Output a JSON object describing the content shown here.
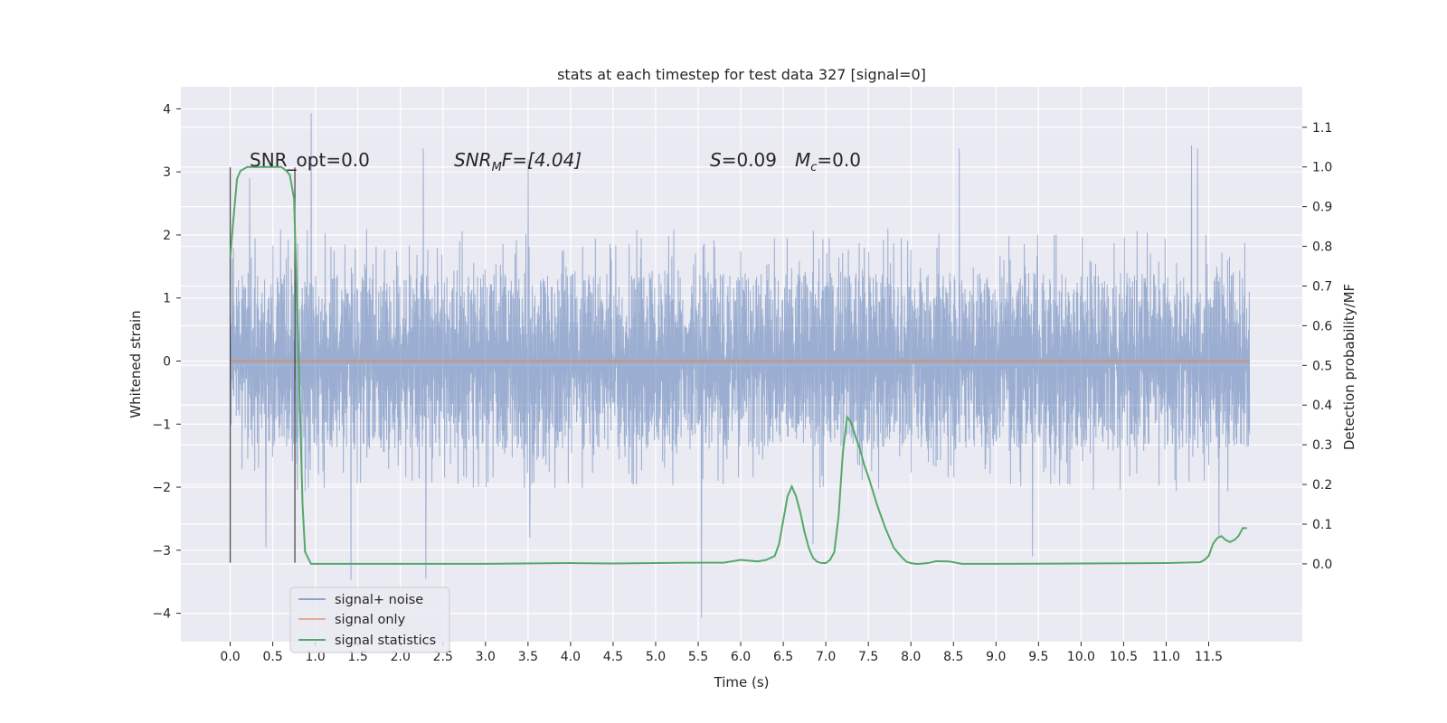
{
  "chart_data": {
    "type": "line",
    "title": "stats at each timestep for test data 327 [signal=0]",
    "xlabel": "Time (s)",
    "ylabel": "Whitened strain",
    "ylabel_right": "Detection probability/MF",
    "xlim": [
      -0.58,
      12.6
    ],
    "ylim": [
      -4.45,
      4.35
    ],
    "ylim_right": [
      -0.196,
      1.202
    ],
    "x_ticks": [
      0.0,
      0.5,
      1.0,
      1.5,
      2.0,
      2.5,
      3.0,
      3.5,
      4.0,
      4.5,
      5.0,
      5.5,
      6.0,
      6.5,
      7.0,
      7.5,
      8.0,
      8.5,
      9.0,
      9.5,
      10.0,
      10.5,
      11.0,
      11.5
    ],
    "x_tick_labels": [
      "0.0",
      "0.5",
      "1.0",
      "1.5",
      "2.0",
      "2.5",
      "3.0",
      "3.5",
      "4.0",
      "4.5",
      "5.0",
      "5.5",
      "6.0",
      "6.5",
      "7.0",
      "7.5",
      "8.0",
      "8.5",
      "9.0",
      "9.5",
      "10.0",
      "10.5",
      "11.0",
      "11.5"
    ],
    "y_ticks": [
      -4,
      -3,
      -2,
      -1,
      0,
      1,
      2,
      3,
      4
    ],
    "y_tick_labels": [
      "−4",
      "−3",
      "−2",
      "−1",
      "0",
      "1",
      "2",
      "3",
      "4"
    ],
    "y_ticks_right": [
      0.0,
      0.1,
      0.2,
      0.3,
      0.4,
      0.5,
      0.6,
      0.7,
      0.8,
      0.9,
      1.0,
      1.1
    ],
    "y_tick_labels_right": [
      "0.0",
      "0.1",
      "0.2",
      "0.3",
      "0.4",
      "0.5",
      "0.6",
      "0.7",
      "0.8",
      "0.9",
      "1.0",
      "1.1"
    ],
    "grid": true,
    "legend_position": "lower-left",
    "legend": [
      {
        "label": "signal+ noise",
        "color": "#4C72B0"
      },
      {
        "label": "signal only",
        "color": "#DD8452"
      },
      {
        "label": "signal statistics",
        "color": "#55A868"
      }
    ],
    "annotations": {
      "snr_opt": "SNR_opt=0.0",
      "snr_mf_sym": "SNR",
      "snr_mf_sub": "M",
      "snr_mf_rest": "F=[4.04]",
      "s_sym": "S",
      "s_value": "=0.09",
      "mc_sym": "M",
      "mc_sub": "c",
      "mc_value": "=0.0"
    },
    "vertical_lines": [
      {
        "x": 0.0,
        "ymin": -3.2,
        "ymax": 3.07
      },
      {
        "x": 0.76,
        "ymin": -3.2,
        "ymax": 3.07
      }
    ],
    "series": [
      {
        "name": "signal+ noise",
        "role": "strain",
        "axis": "left",
        "color": "#4C72B0",
        "x_range": [
          0.0,
          11.98
        ],
        "typical_band": [
          -2.0,
          2.0
        ],
        "peaks": [
          {
            "x": 0.95,
            "y": 3.93
          },
          {
            "x": 2.27,
            "y": 3.37
          },
          {
            "x": 3.5,
            "y": 3.2
          },
          {
            "x": 8.57,
            "y": 3.37
          },
          {
            "x": 11.3,
            "y": 3.42
          },
          {
            "x": 11.37,
            "y": 3.37
          },
          {
            "x": 0.23,
            "y": 2.9
          },
          {
            "x": 5.54,
            "y": -4.07
          },
          {
            "x": 1.42,
            "y": -3.47
          },
          {
            "x": 2.3,
            "y": -3.45
          },
          {
            "x": 0.42,
            "y": -2.95
          },
          {
            "x": 6.85,
            "y": -2.9
          },
          {
            "x": 9.43,
            "y": -3.1
          },
          {
            "x": 11.62,
            "y": -2.78
          },
          {
            "x": 3.52,
            "y": -2.8
          }
        ]
      },
      {
        "name": "signal only",
        "role": "signal",
        "axis": "left",
        "color": "#DD8452",
        "x": [
          0.0,
          11.98
        ],
        "y": [
          0.0,
          0.0
        ]
      },
      {
        "name": "signal statistics",
        "role": "stat",
        "axis": "right",
        "color": "#55A868",
        "x": [
          0.0,
          0.03,
          0.08,
          0.12,
          0.2,
          0.3,
          0.4,
          0.5,
          0.6,
          0.66,
          0.7,
          0.75,
          0.8,
          0.85,
          0.88,
          0.95,
          1.2,
          2.0,
          3.0,
          4.0,
          4.5,
          5.0,
          5.5,
          5.8,
          6.0,
          6.1,
          6.2,
          6.3,
          6.4,
          6.45,
          6.5,
          6.55,
          6.6,
          6.65,
          6.7,
          6.75,
          6.8,
          6.85,
          6.9,
          6.95,
          7.0,
          7.05,
          7.1,
          7.15,
          7.2,
          7.25,
          7.3,
          7.35,
          7.4,
          7.45,
          7.5,
          7.6,
          7.7,
          7.8,
          7.9,
          7.95,
          8.0,
          8.05,
          8.1,
          8.2,
          8.3,
          8.45,
          8.55,
          8.6,
          8.8,
          9.0,
          10.0,
          11.0,
          11.4,
          11.45,
          11.5,
          11.55,
          11.6,
          11.65,
          11.7,
          11.75,
          11.8,
          11.85,
          11.9,
          11.95
        ],
        "y": [
          0.77,
          0.85,
          0.97,
          0.99,
          1.0,
          1.0,
          1.0,
          1.0,
          1.0,
          0.99,
          0.98,
          0.92,
          0.55,
          0.15,
          0.03,
          0.0,
          0.0,
          0.0,
          0.0,
          0.002,
          0.001,
          0.002,
          0.003,
          0.003,
          0.01,
          0.008,
          0.006,
          0.01,
          0.02,
          0.05,
          0.11,
          0.17,
          0.195,
          0.17,
          0.13,
          0.08,
          0.04,
          0.015,
          0.005,
          0.002,
          0.002,
          0.01,
          0.03,
          0.12,
          0.28,
          0.37,
          0.355,
          0.32,
          0.29,
          0.25,
          0.22,
          0.15,
          0.09,
          0.04,
          0.015,
          0.005,
          0.002,
          0.0,
          0.0,
          0.002,
          0.007,
          0.006,
          0.002,
          0.0,
          0.0,
          0.0,
          0.001,
          0.002,
          0.004,
          0.01,
          0.02,
          0.05,
          0.065,
          0.07,
          0.06,
          0.055,
          0.06,
          0.07,
          0.09,
          0.09
        ]
      }
    ]
  }
}
